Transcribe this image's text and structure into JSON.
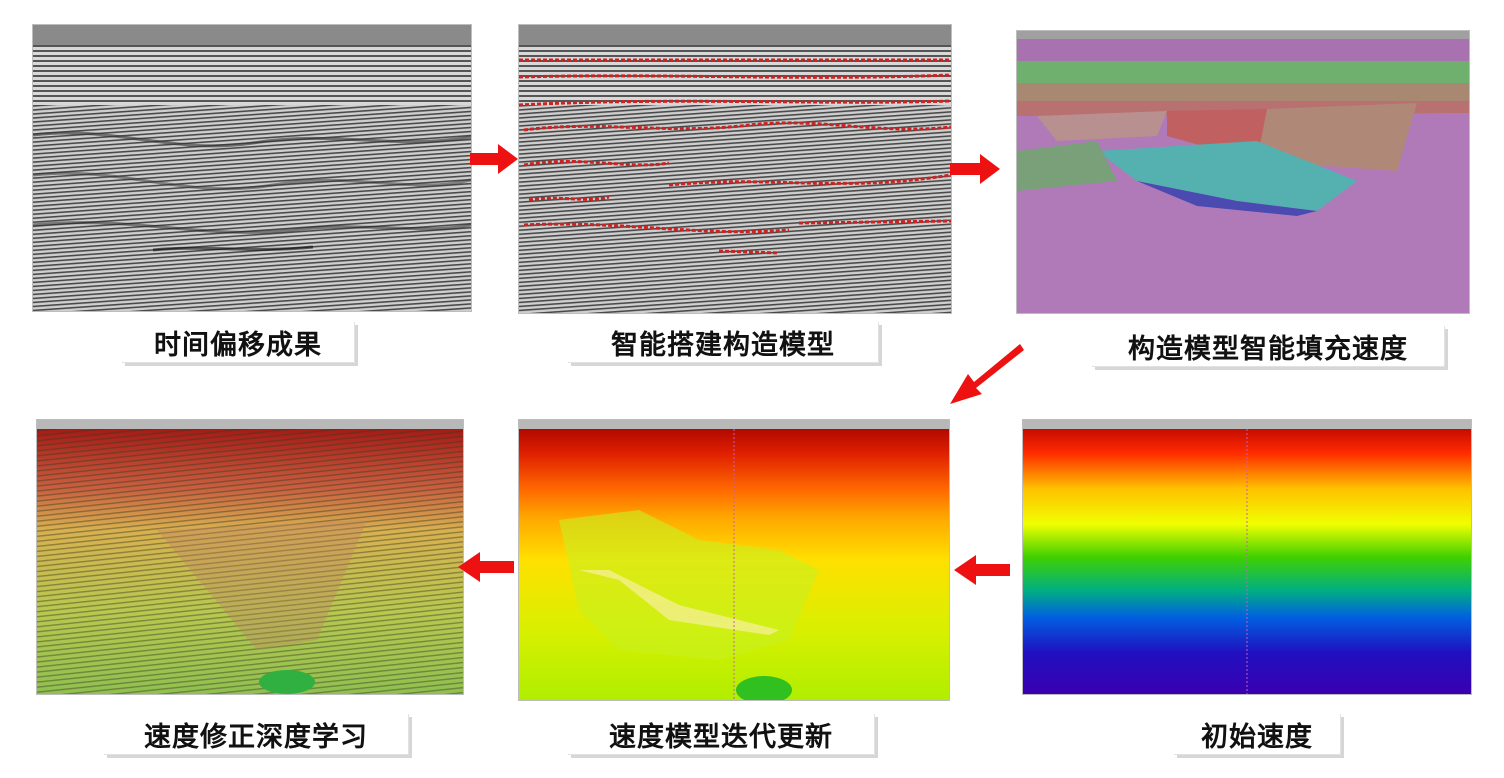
{
  "steps": [
    {
      "label": "时间偏移成果"
    },
    {
      "label": "智能搭建构造模型"
    },
    {
      "label": "构造模型智能填充速度"
    },
    {
      "label": "初始速度"
    },
    {
      "label": "速度模型迭代更新"
    },
    {
      "label": "速度修正深度学习"
    }
  ],
  "colors": {
    "arrow": "#ee1111",
    "horizon": "#cc2222",
    "velocity_high": "#c80000",
    "velocity_low": "#3a00b0"
  }
}
